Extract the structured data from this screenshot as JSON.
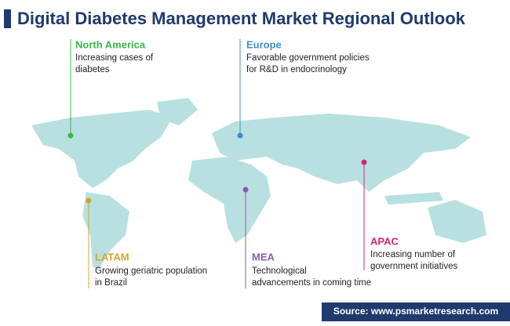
{
  "header": {
    "title": "Digital Diabetes Management Market Regional Outlook"
  },
  "regions": [
    {
      "name": "North America",
      "description": [
        "Increasing cases of",
        "diabetes"
      ]
    },
    {
      "name": "Europe",
      "description": [
        "Favorable government policies",
        "for R&D in endocrinology"
      ]
    },
    {
      "name": "LATAM",
      "description": [
        "Growing geriatric population",
        "in Brazil"
      ]
    },
    {
      "name": "MEA",
      "description": [
        "Technological",
        "advancements in coming time"
      ]
    },
    {
      "name": "APAC",
      "description": [
        "Increasing number of",
        "government initiatives"
      ]
    }
  ],
  "footer": {
    "source": "Source: www.psmarketresearch.com"
  }
}
